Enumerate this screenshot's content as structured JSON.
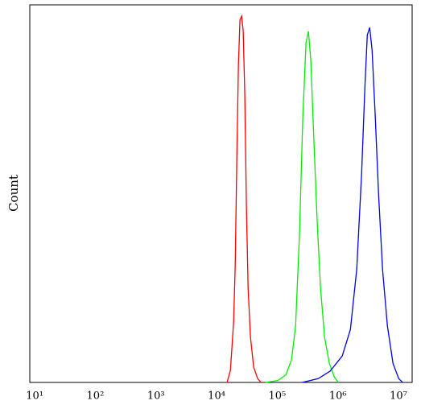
{
  "chart_data": {
    "type": "line",
    "y_label": "Count",
    "xscale": "log",
    "xlim": [
      8.3,
      16800000
    ],
    "ylim": [
      0,
      100
    ],
    "xticks": [
      {
        "value": 10,
        "label": "10¹"
      },
      {
        "value": 100,
        "label": "10²"
      },
      {
        "value": 1000,
        "label": "10³"
      },
      {
        "value": 10000,
        "label": "10⁴"
      },
      {
        "value": 100000,
        "label": "10⁵"
      },
      {
        "value": 1000000,
        "label": "10⁶"
      },
      {
        "value": 10000000,
        "label": "10⁷"
      }
    ],
    "series": [
      {
        "color": "#ff0000",
        "x": [
          14900,
          16900,
          19100,
          20300,
          21500,
          22900,
          24300,
          25900,
          27500,
          29200,
          31100,
          33100,
          36200,
          40900,
          47700,
          54000
        ],
        "values": [
          0,
          3.2,
          16,
          31,
          58,
          84,
          96,
          97,
          93,
          76,
          46,
          25,
          12,
          4,
          1,
          0
        ]
      },
      {
        "color": "#00ee00",
        "x": [
          64700,
          102000,
          139000,
          172000,
          201000,
          234000,
          264000,
          299000,
          327000,
          359000,
          405000,
          458000,
          518000,
          604000,
          726000,
          871000,
          1020000
        ],
        "values": [
          0,
          0.5,
          2,
          6,
          15,
          40,
          70,
          90,
          93,
          85,
          63,
          42,
          25,
          12,
          5,
          1.5,
          0
        ]
      },
      {
        "color": "#0000ee",
        "x": [
          257000,
          473000,
          748000,
          1180000,
          1610000,
          2050000,
          2460000,
          2790000,
          3060000,
          3350000,
          3670000,
          4150000,
          4690000,
          5460000,
          6560000,
          8130000,
          10100000,
          11700000
        ],
        "values": [
          0,
          1,
          3,
          7,
          14,
          30,
          55,
          78,
          92,
          94,
          88,
          70,
          50,
          30,
          15,
          5,
          1,
          0
        ]
      }
    ]
  }
}
